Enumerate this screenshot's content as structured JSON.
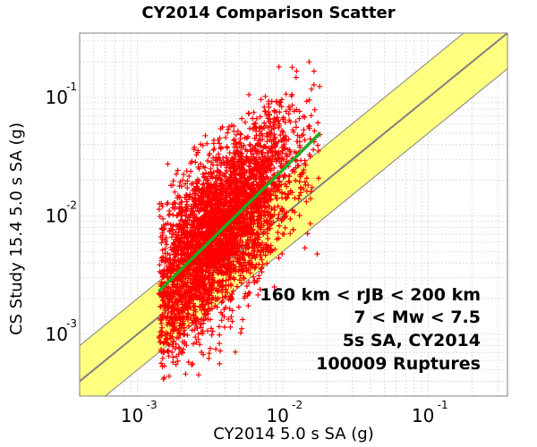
{
  "chart_data": {
    "type": "scatter",
    "title": "CY2014 Comparison Scatter",
    "xlabel": "CY2014 5.0 s SA (g)",
    "ylabel": "CS Study 15.4 5.0 s SA (g)",
    "xscale": "log",
    "yscale": "log",
    "xlim": [
      0.0004,
      0.35
    ],
    "ylim": [
      0.0003,
      0.35
    ],
    "grid": true,
    "x_ticks": [
      {
        "value": 0.001,
        "base": "10",
        "exp": "-3"
      },
      {
        "value": 0.01,
        "base": "10",
        "exp": "-2"
      },
      {
        "value": 0.1,
        "base": "10",
        "exp": "-1"
      }
    ],
    "y_ticks": [
      {
        "value": 0.001,
        "base": "10",
        "exp": "-3"
      },
      {
        "value": 0.01,
        "base": "10",
        "exp": "-2"
      },
      {
        "value": 0.1,
        "base": "10",
        "exp": "-1"
      }
    ],
    "scatter_cloud": {
      "marker": "+",
      "color": "#ff0000",
      "x_range": [
        0.0014,
        0.018
      ],
      "y_range": [
        0.0004,
        0.25
      ]
    },
    "fit_line": {
      "color": "#22aa22",
      "points": [
        [
          0.0014,
          0.0023
        ],
        [
          0.018,
          0.05
        ]
      ]
    },
    "one_to_one_line": {
      "color": "#808080"
    },
    "factor_band": {
      "factor": 2,
      "fill": "#ffff80",
      "edge": "#808080"
    },
    "annotations": [
      "160 km < rJB < 200 km",
      "7 < Mw < 7.5",
      "5s SA, CY2014",
      "100009 Ruptures"
    ]
  }
}
